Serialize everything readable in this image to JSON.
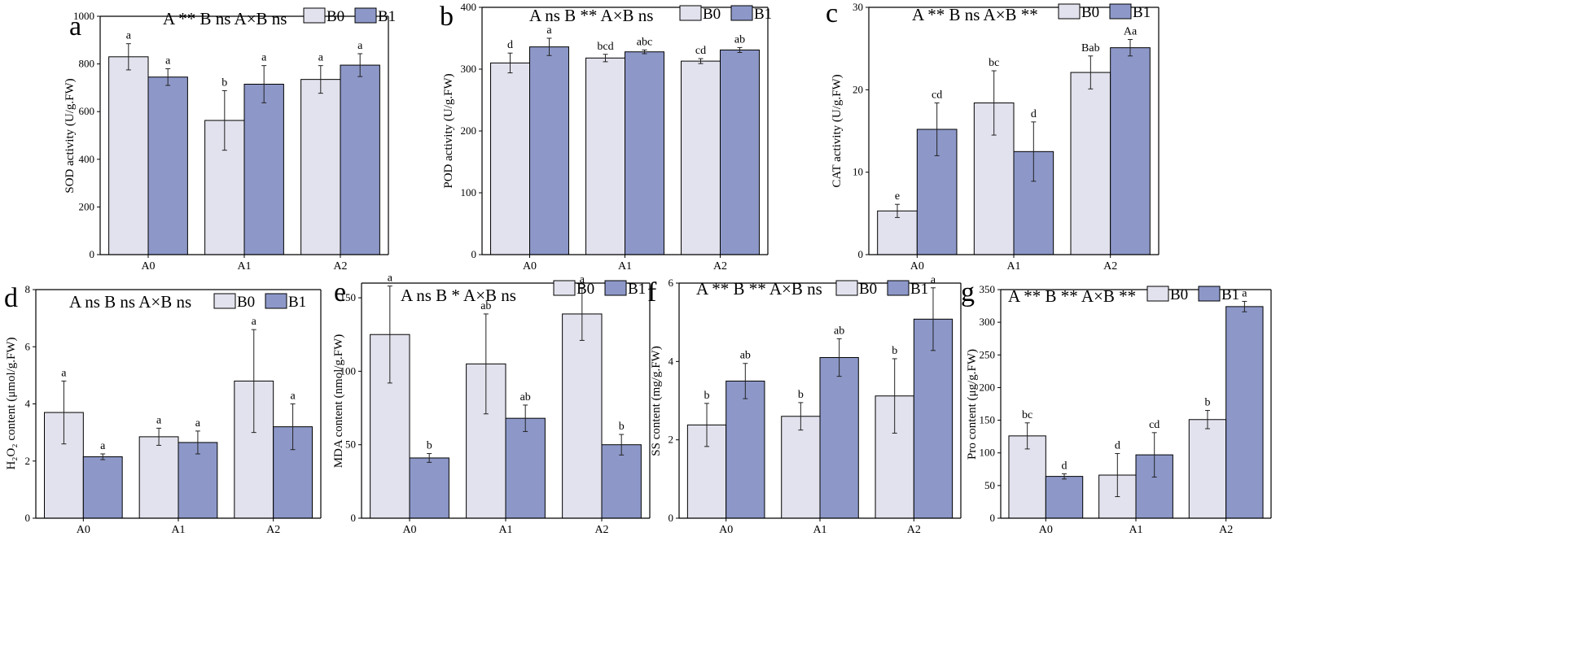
{
  "figure": {
    "legend": [
      "B0",
      "B1"
    ],
    "colors": {
      "B0": "#e2e2ee",
      "B1": "#8d98c9",
      "stroke": "#000000"
    }
  },
  "chart_data": [
    {
      "panel": "a",
      "type": "bar",
      "significance": "A ** B ns A×B ns",
      "categories": [
        "A0",
        "A1",
        "A2"
      ],
      "ylabel": "SOD activity (U/g.FW)",
      "ylim": [
        0,
        1000
      ],
      "yticks": [
        0,
        200,
        400,
        600,
        800,
        1000
      ],
      "series": [
        {
          "name": "B0",
          "values": [
            830,
            563,
            735
          ],
          "errors": [
            55,
            125,
            58
          ],
          "letters": [
            "a",
            "b",
            "a"
          ]
        },
        {
          "name": "B1",
          "values": [
            745,
            715,
            795
          ],
          "errors": [
            35,
            78,
            48
          ],
          "letters": [
            "a",
            "a",
            "a"
          ]
        }
      ]
    },
    {
      "panel": "b",
      "type": "bar",
      "significance": "A ns B ** A×B ns",
      "categories": [
        "A0",
        "A1",
        "A2"
      ],
      "ylabel": "POD activity (U/g.FW)",
      "ylim": [
        0,
        400
      ],
      "yticks": [
        0,
        100,
        200,
        300,
        400
      ],
      "series": [
        {
          "name": "B0",
          "values": [
            310,
            318,
            313
          ],
          "errors": [
            16,
            6,
            4
          ],
          "letters": [
            "d",
            "bcd",
            "cd"
          ]
        },
        {
          "name": "B1",
          "values": [
            336,
            328,
            331
          ],
          "errors": [
            14,
            3,
            4
          ],
          "letters": [
            "a",
            "abc",
            "ab"
          ]
        }
      ]
    },
    {
      "panel": "c",
      "type": "bar",
      "significance": "A ** B ns A×B **",
      "categories": [
        "A0",
        "A1",
        "A2"
      ],
      "ylabel": "CAT activity (U/g.FW)",
      "ylim": [
        0,
        30
      ],
      "yticks": [
        0,
        10,
        20,
        30
      ],
      "series": [
        {
          "name": "B0",
          "values": [
            5.3,
            18.4,
            22.1
          ],
          "errors": [
            0.8,
            3.9,
            2.0
          ],
          "letters": [
            "e",
            "bc",
            "Bab"
          ]
        },
        {
          "name": "B1",
          "values": [
            15.2,
            12.5,
            25.1
          ],
          "errors": [
            3.2,
            3.6,
            1.0
          ],
          "letters": [
            "cd",
            "d",
            "Aa"
          ]
        }
      ]
    },
    {
      "panel": "d",
      "type": "bar",
      "significance": "A ns B ns A×B ns",
      "categories": [
        "A0",
        "A1",
        "A2"
      ],
      "ylabel": "H₂O₂ content (μmol/g.FW)",
      "ylim": [
        0,
        8
      ],
      "yticks": [
        0,
        2,
        4,
        6,
        8
      ],
      "series": [
        {
          "name": "B0",
          "values": [
            3.7,
            2.85,
            4.8
          ],
          "errors": [
            1.1,
            0.3,
            1.8
          ],
          "letters": [
            "a",
            "a",
            "a"
          ]
        },
        {
          "name": "B1",
          "values": [
            2.15,
            2.65,
            3.2
          ],
          "errors": [
            0.1,
            0.4,
            0.8
          ],
          "letters": [
            "a",
            "a",
            "a"
          ]
        }
      ]
    },
    {
      "panel": "e",
      "type": "bar",
      "significance": "A ns B * A×B ns",
      "categories": [
        "A0",
        "A1",
        "A2"
      ],
      "ylabel": "MDA content (nmol/g.FW)",
      "ylim": [
        0,
        160
      ],
      "yticks": [
        0,
        50,
        100,
        150
      ],
      "series": [
        {
          "name": "B0",
          "values": [
            125,
            105,
            139
          ],
          "errors": [
            33,
            34,
            18
          ],
          "letters": [
            "a",
            "ab",
            "a"
          ]
        },
        {
          "name": "B1",
          "values": [
            41,
            68,
            50
          ],
          "errors": [
            3,
            9,
            7
          ],
          "letters": [
            "b",
            "ab",
            "b"
          ]
        }
      ]
    },
    {
      "panel": "f",
      "type": "bar",
      "significance": "A ** B ** A×B ns",
      "categories": [
        "A0",
        "A1",
        "A2"
      ],
      "ylabel": "SS content (mg/g.FW)",
      "ylim": [
        0,
        6
      ],
      "yticks": [
        0,
        2,
        4,
        6
      ],
      "series": [
        {
          "name": "B0",
          "values": [
            2.38,
            2.6,
            3.12
          ],
          "errors": [
            0.55,
            0.35,
            0.95
          ],
          "letters": [
            "b",
            "b",
            "b"
          ]
        },
        {
          "name": "B1",
          "values": [
            3.5,
            4.1,
            5.08
          ],
          "errors": [
            0.45,
            0.48,
            0.8
          ],
          "letters": [
            "ab",
            "ab",
            "a"
          ]
        }
      ]
    },
    {
      "panel": "g",
      "type": "bar",
      "significance": "A ** B ** A×B **",
      "categories": [
        "A0",
        "A1",
        "A2"
      ],
      "ylabel": "Pro content (μg/g.FW)",
      "ylim": [
        0,
        350
      ],
      "yticks": [
        0,
        50,
        100,
        150,
        200,
        250,
        300,
        350
      ],
      "series": [
        {
          "name": "B0",
          "values": [
            126,
            66,
            151
          ],
          "errors": [
            20,
            33,
            14
          ],
          "letters": [
            "bc",
            "d",
            "b"
          ]
        },
        {
          "name": "B1",
          "values": [
            64,
            97,
            324
          ],
          "errors": [
            4,
            34,
            8
          ],
          "letters": [
            "d",
            "cd",
            "a"
          ]
        }
      ]
    }
  ]
}
